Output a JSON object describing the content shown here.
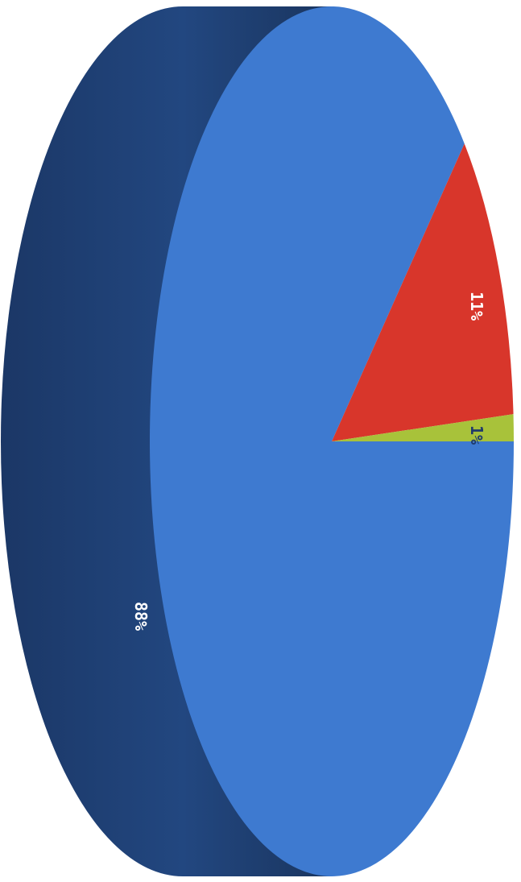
{
  "chart_data": {
    "type": "pie",
    "title": "",
    "values": [
      88,
      11,
      1
    ],
    "labels": [
      "88%",
      "11%",
      "1%"
    ],
    "colors": [
      "#3E7AD0",
      "#D8362B",
      "#A8C23A"
    ],
    "side_color": "#1E3F73",
    "label_color": "#FFFFFF",
    "legend": "none",
    "style": "3d-rotated"
  }
}
